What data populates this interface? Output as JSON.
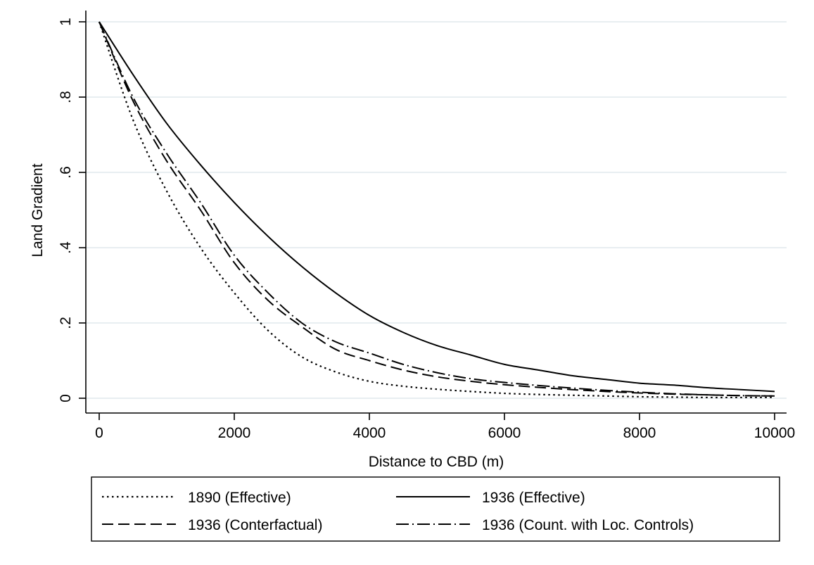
{
  "chart_data": {
    "type": "line",
    "title": "",
    "xlabel": "Distance to CBD (m)",
    "ylabel": "Land Gradient",
    "xlim": [
      0,
      10000
    ],
    "ylim": [
      0,
      1
    ],
    "x_ticks": [
      0,
      2000,
      4000,
      6000,
      8000,
      10000
    ],
    "x_tick_labels": [
      "0",
      "2000",
      "4000",
      "6000",
      "8000",
      "10000"
    ],
    "y_ticks": [
      0,
      0.2,
      0.4,
      0.6,
      0.8,
      1
    ],
    "y_tick_labels": [
      "0",
      ".2",
      ".4",
      ".6",
      ".8",
      "1"
    ],
    "grid": "horizontal",
    "legend_position": "bottom",
    "x": [
      0,
      500,
      1000,
      1500,
      2000,
      2500,
      3000,
      3500,
      4000,
      4500,
      5000,
      5500,
      6000,
      6500,
      7000,
      7500,
      8000,
      8500,
      9000,
      9500,
      10000
    ],
    "series": [
      {
        "name": "1890 (Effective)",
        "style": "dotted",
        "values": [
          1,
          0.74,
          0.55,
          0.4,
          0.28,
          0.18,
          0.11,
          0.07,
          0.045,
          0.032,
          0.024,
          0.018,
          0.013,
          0.01,
          0.008,
          0.006,
          0.004,
          0.003,
          0.002,
          0.002,
          0.002
        ]
      },
      {
        "name": "1936 (Effective)",
        "style": "solid",
        "values": [
          1,
          0.86,
          0.73,
          0.62,
          0.52,
          0.43,
          0.35,
          0.28,
          0.22,
          0.175,
          0.14,
          0.115,
          0.09,
          0.075,
          0.06,
          0.05,
          0.04,
          0.035,
          0.028,
          0.023,
          0.018
        ]
      },
      {
        "name": "1936 (Conterfactual)",
        "style": "dashed",
        "values": [
          1,
          0.79,
          0.63,
          0.5,
          0.36,
          0.26,
          0.19,
          0.13,
          0.1,
          0.075,
          0.057,
          0.045,
          0.036,
          0.029,
          0.023,
          0.018,
          0.014,
          0.011,
          0.009,
          0.007,
          0.006
        ]
      },
      {
        "name": "1936 (Count. with Loc. Controls)",
        "style": "dash-dot",
        "values": [
          1,
          0.8,
          0.65,
          0.52,
          0.38,
          0.28,
          0.2,
          0.15,
          0.12,
          0.09,
          0.068,
          0.052,
          0.042,
          0.034,
          0.027,
          0.021,
          0.016,
          0.012,
          0.009,
          0.007,
          0.006
        ]
      }
    ]
  }
}
